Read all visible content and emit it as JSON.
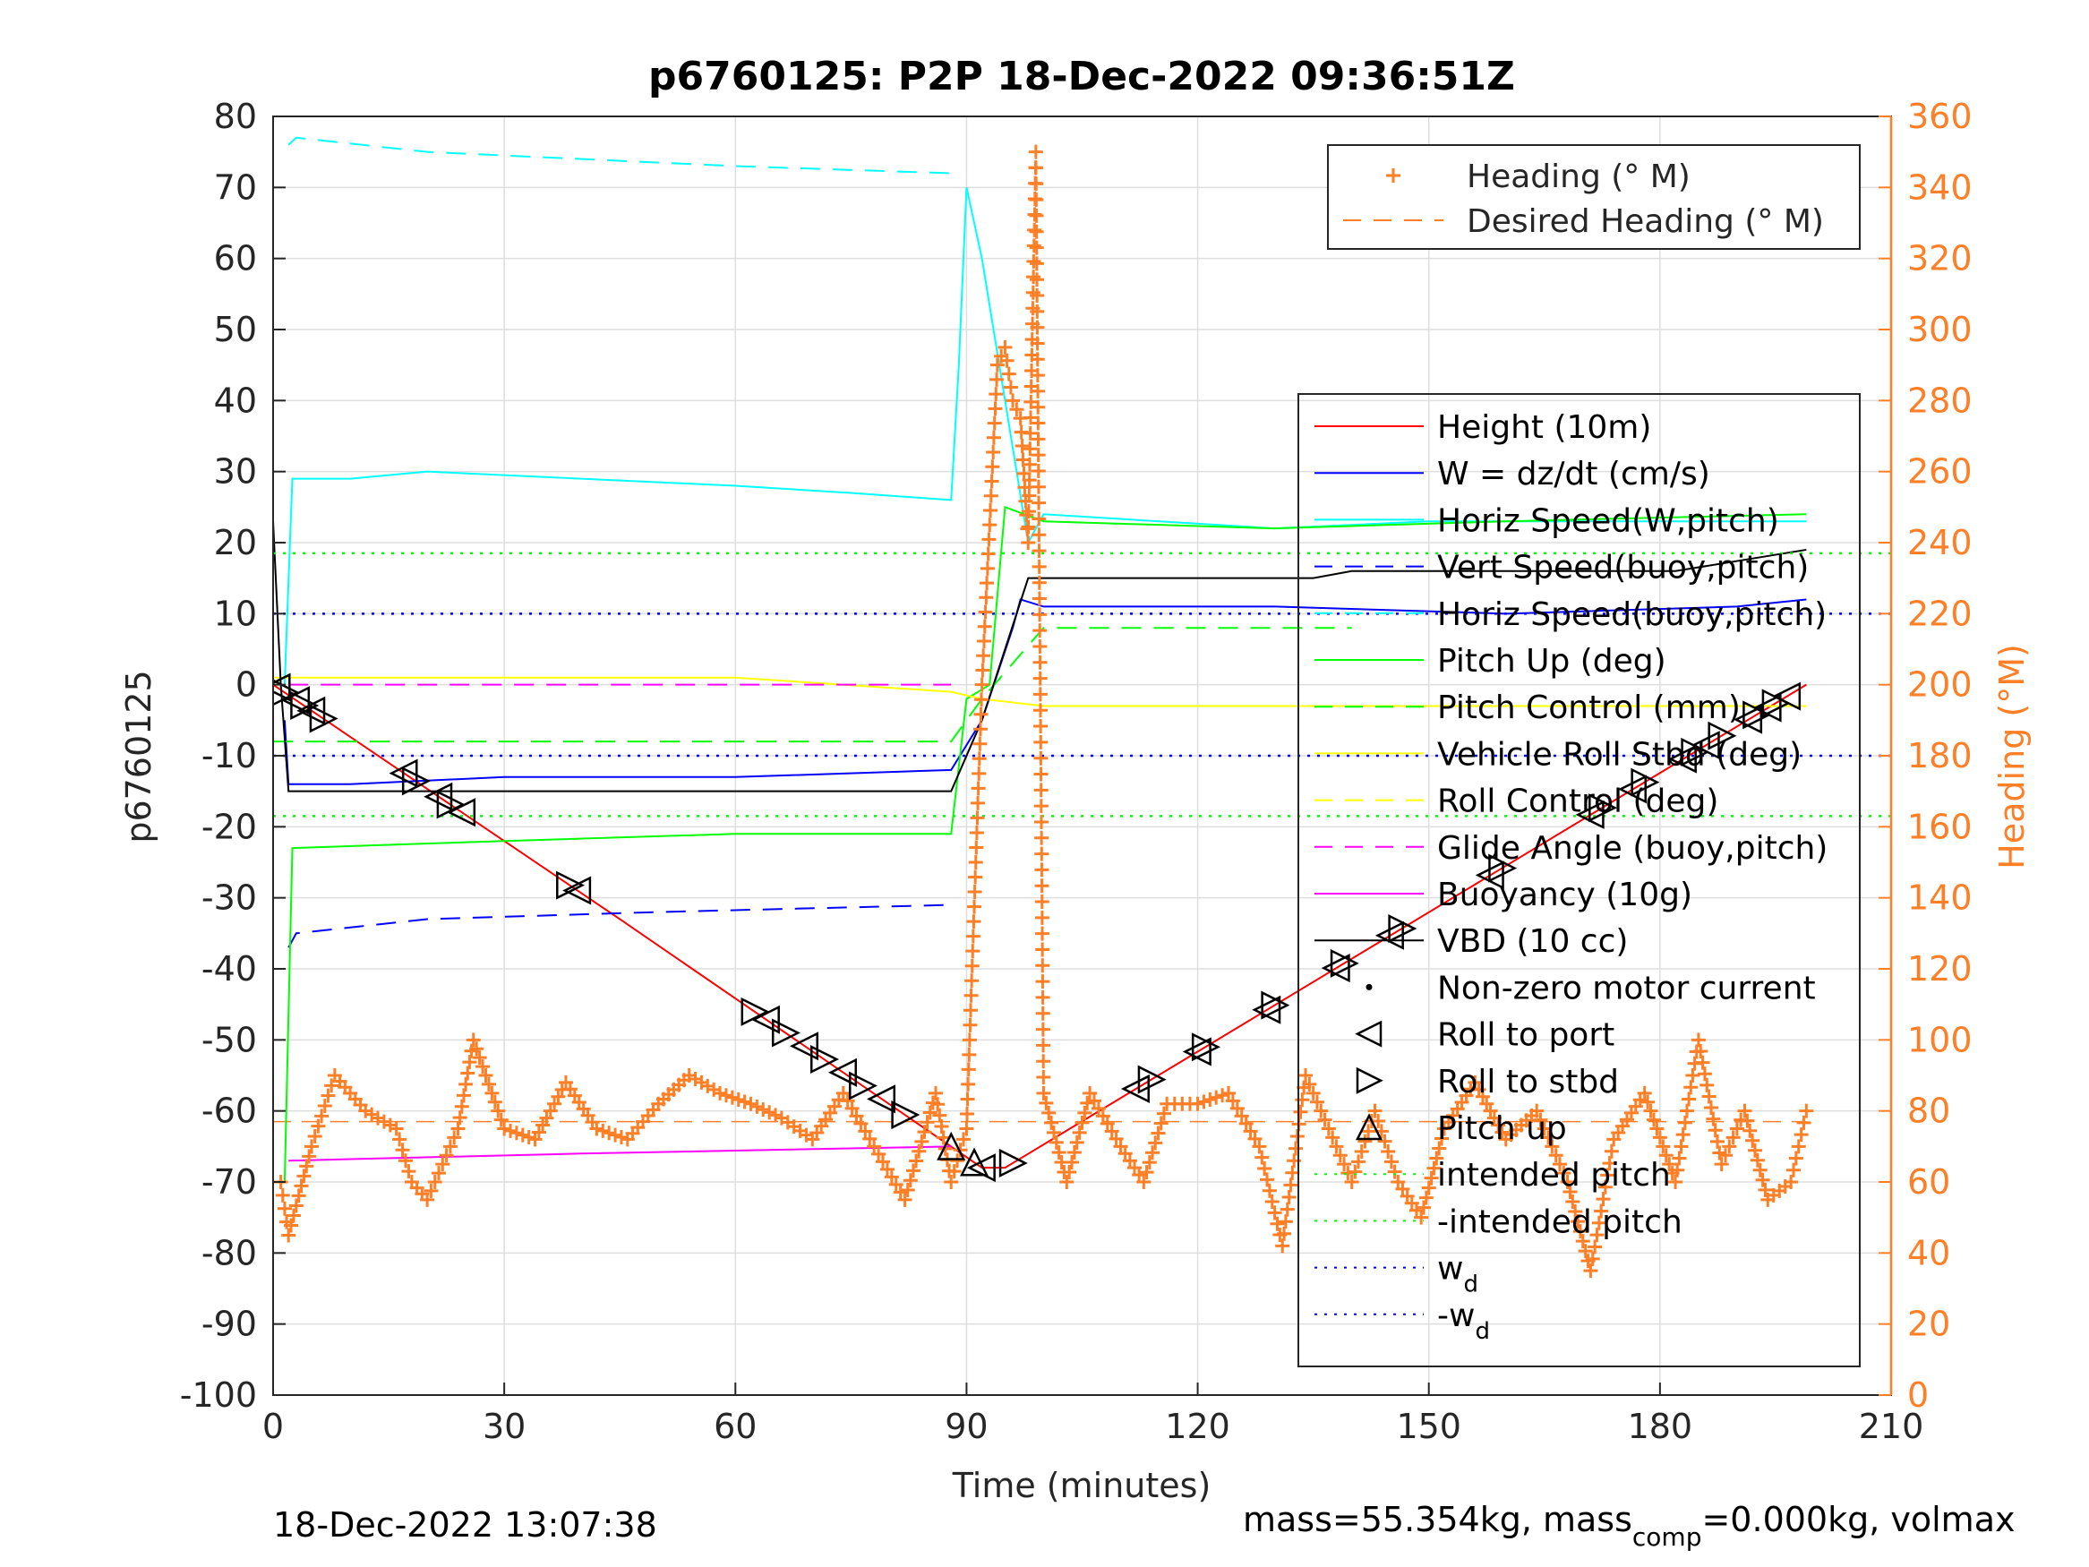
{
  "chart_data": {
    "type": "line",
    "title": "p6760125: P2P 18-Dec-2022 09:36:51Z",
    "xlabel": "Time (minutes)",
    "ylabel": "p6760125",
    "y2label": "Heading (°M)",
    "xlim": [
      0,
      210
    ],
    "ylim": [
      -100,
      80
    ],
    "y2lim": [
      0,
      360
    ],
    "xticks": [
      0,
      30,
      60,
      90,
      120,
      150,
      180,
      210
    ],
    "yticks": [
      80,
      70,
      60,
      50,
      40,
      30,
      20,
      10,
      0,
      -10,
      -20,
      -30,
      -40,
      -50,
      -60,
      -70,
      -80,
      -90,
      -100
    ],
    "y2ticks": [
      360,
      340,
      320,
      300,
      280,
      260,
      240,
      220,
      200,
      180,
      160,
      140,
      120,
      100,
      80,
      60,
      40,
      20,
      0
    ],
    "grid": true,
    "timestamp": "18-Dec-2022 13:07:38",
    "footer_text": "mass=55.354kg, mass",
    "footer_sub": "comp",
    "footer_tail": "=0.000kg, volmax",
    "colors": {
      "height": "#ff0000",
      "w": "#0000ff",
      "horiz_speed": "#00ffff",
      "pitch": "#00ff00",
      "roll": "#ffff00",
      "glide": "#ff00ff",
      "vbd": "#000000",
      "heading": "#ff7f27"
    },
    "legend_top": [
      {
        "label": "Heading (° M)",
        "style": "plus",
        "color": "#ff7f27"
      },
      {
        "label": "Desired Heading (° M)",
        "style": "dashed",
        "color": "#ff7f27"
      }
    ],
    "legend_main": [
      {
        "label": "Height (10m)",
        "style": "solid",
        "color": "#ff0000"
      },
      {
        "label": "W = dz/dt (cm/s)",
        "style": "solid",
        "color": "#0000ff"
      },
      {
        "label": "Horiz Speed(W,pitch)",
        "style": "solid",
        "color": "#00ffff"
      },
      {
        "label": "Vert Speed(buoy,pitch)",
        "style": "dashed",
        "color": "#0000ff"
      },
      {
        "label": "Horiz Speed(buoy,pitch)",
        "style": "dashed",
        "color": "#00ffff"
      },
      {
        "label": "Pitch Up (deg)",
        "style": "solid",
        "color": "#00ff00"
      },
      {
        "label": "Pitch Control (mm)",
        "style": "dashed",
        "color": "#00ff00"
      },
      {
        "label": "Vehicle Roll Stbd (deg)",
        "style": "solid",
        "color": "#ffff00"
      },
      {
        "label": "Roll Control (deg)",
        "style": "dashed",
        "color": "#ffff00"
      },
      {
        "label": "Glide Angle (buoy,pitch)",
        "style": "dashed",
        "color": "#ff00ff"
      },
      {
        "label": "Buoyancy (10g)",
        "style": "solid",
        "color": "#ff00ff"
      },
      {
        "label": "VBD (10 cc)",
        "style": "solid",
        "color": "#000000"
      },
      {
        "label": "Non-zero motor current",
        "style": "dot",
        "color": "#000000"
      },
      {
        "label": "Roll to port",
        "style": "tri-left",
        "color": "#000000"
      },
      {
        "label": "Roll to stbd",
        "style": "tri-right",
        "color": "#000000"
      },
      {
        "label": "Pitch up",
        "style": "tri-up",
        "color": "#000000"
      },
      {
        "label": "intended pitch",
        "style": "dotted",
        "color": "#00ff00"
      },
      {
        "label": "-intended pitch",
        "style": "dotted",
        "color": "#00ff00"
      },
      {
        "label": "w",
        "sub": "d",
        "style": "dotted",
        "color": "#0000ff"
      },
      {
        "label": "-w",
        "sub": "d",
        "style": "dotted",
        "color": "#0000ff"
      }
    ],
    "series": [
      {
        "name": "Height (10m)",
        "x": [
          0,
          45,
          92,
          95,
          199
        ],
        "y": [
          0,
          -33,
          -68,
          -68,
          0
        ]
      },
      {
        "name": "W = dz/dt (cm/s)",
        "x": [
          1.5,
          2,
          10,
          30,
          60,
          88,
          92,
          96,
          97,
          100,
          130,
          160,
          190,
          199
        ],
        "y": [
          -5,
          -14,
          -14,
          -13,
          -13,
          -12,
          -5,
          8,
          12,
          11,
          11,
          10,
          11,
          12
        ]
      },
      {
        "name": "Vert Speed(buoy,pitch)",
        "x": [
          2,
          3,
          20,
          50,
          88
        ],
        "y": [
          -37,
          -35,
          -33,
          -32,
          -31
        ]
      },
      {
        "name": "Horiz Speed(W,pitch)",
        "x": [
          1.5,
          2.5,
          10,
          20,
          40,
          60,
          75,
          88,
          89,
          90,
          92,
          95,
          98,
          100,
          130,
          150,
          180,
          199
        ],
        "y": [
          0,
          29,
          29,
          30,
          29,
          28,
          27,
          26,
          45,
          70,
          60,
          40,
          20,
          24,
          22,
          23,
          23,
          23
        ]
      },
      {
        "name": "Horiz Speed(buoy,pitch)",
        "x": [
          2,
          3,
          20,
          60,
          88
        ],
        "y": [
          76,
          77,
          75,
          73,
          72
        ]
      },
      {
        "name": "Pitch Up (deg)",
        "x": [
          1.5,
          2.5,
          30,
          60,
          88,
          90,
          93,
          95,
          100,
          130,
          160,
          199
        ],
        "y": [
          -70,
          -23,
          -22,
          -21,
          -21,
          -2,
          0,
          25,
          23,
          22,
          23,
          24
        ]
      },
      {
        "name": "Pitch Control (mm)",
        "x": [
          0,
          88,
          92,
          100,
          140
        ],
        "y": [
          -8,
          -8,
          -2,
          8,
          8
        ]
      },
      {
        "name": "Vehicle Roll Stbd (deg)",
        "x": [
          0,
          5,
          60,
          88,
          92,
          100,
          150,
          199
        ],
        "y": [
          1,
          1,
          1,
          -1,
          -2,
          -3,
          -3,
          -3
        ]
      },
      {
        "name": "Glide Angle (buoy,pitch)",
        "x": [
          2,
          88
        ],
        "y": [
          0,
          0
        ]
      },
      {
        "name": "Buoyancy (10g)",
        "x": [
          2,
          40,
          88
        ],
        "y": [
          -67,
          -66,
          -65
        ]
      },
      {
        "name": "VBD (10 cc)",
        "x": [
          0,
          1,
          2,
          88,
          92,
          98,
          135,
          140,
          182,
          199
        ],
        "y": [
          23,
          0,
          -15,
          -15,
          -5,
          15,
          15,
          16,
          16,
          19
        ]
      },
      {
        "name": "intended pitch",
        "x": [
          0,
          210
        ],
        "y": [
          18.5,
          18.5
        ]
      },
      {
        "name": "-intended pitch",
        "x": [
          0,
          210
        ],
        "y": [
          -18.5,
          -18.5
        ]
      },
      {
        "name": "w_d",
        "x": [
          0,
          210
        ],
        "y": [
          10,
          10
        ]
      },
      {
        "name": "-w_d",
        "x": [
          0,
          210
        ],
        "y": [
          -10,
          -10
        ]
      }
    ],
    "heading_series": {
      "name": "Heading (° M)",
      "x": [
        1,
        2,
        5,
        8,
        12,
        16,
        18,
        20,
        24,
        26,
        30,
        34,
        38,
        42,
        46,
        50,
        54,
        58,
        62,
        66,
        70,
        74,
        78,
        82,
        86,
        88,
        90,
        92,
        94,
        95,
        96,
        97,
        98,
        99,
        100,
        103,
        106,
        110,
        113,
        116,
        120,
        124,
        128,
        131,
        134,
        137,
        140,
        143,
        146,
        149,
        152,
        156,
        160,
        164,
        168,
        171,
        174,
        178,
        182,
        185,
        188,
        191,
        194,
        197,
        199
      ],
      "y": [
        60,
        45,
        70,
        90,
        80,
        75,
        60,
        55,
        75,
        100,
        75,
        72,
        88,
        75,
        72,
        82,
        90,
        85,
        82,
        78,
        72,
        85,
        70,
        55,
        85,
        60,
        75,
        200,
        290,
        295,
        280,
        275,
        240,
        350,
        85,
        60,
        85,
        70,
        60,
        82,
        82,
        85,
        70,
        42,
        90,
        75,
        60,
        80,
        60,
        50,
        75,
        88,
        72,
        80,
        60,
        35,
        72,
        85,
        60,
        100,
        65,
        80,
        55,
        60,
        80
      ]
    },
    "desired_heading": {
      "name": "Desired Heading (° M)",
      "x": [
        0,
        199
      ],
      "y": [
        77,
        77
      ]
    },
    "markers": {
      "roll_pairs_x": [
        0.5,
        1.5,
        3,
        4,
        5,
        6.5,
        17,
        18.5,
        21.5,
        23,
        24.5,
        38.5,
        39.5,
        62.5,
        64,
        66.5,
        69,
        71.5,
        74,
        76.5,
        79,
        82,
        92,
        96,
        112,
        114,
        120,
        121,
        129,
        130,
        138,
        139,
        145,
        146.5,
        158,
        159.5,
        171,
        172.5,
        176.5,
        178,
        183,
        184.5,
        186,
        188,
        191.5,
        192.5,
        194,
        195,
        196.5
      ],
      "pitch_up_x": [
        88,
        91
      ]
    }
  }
}
